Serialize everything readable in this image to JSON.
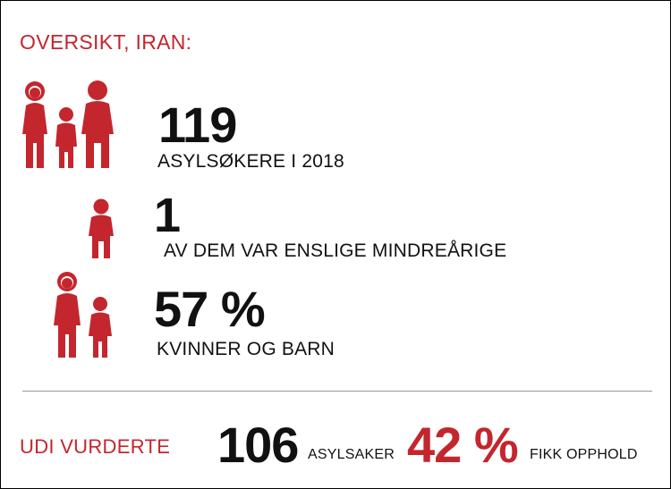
{
  "title": "OVERSIKT, IRAN:",
  "colors": {
    "accent": "#c4262e",
    "text": "#111111"
  },
  "stats": [
    {
      "value": "119",
      "label": "ASYLSØKERE I 2018",
      "icon": "family-icon"
    },
    {
      "value": "1",
      "label": "AV DEM VAR ENSLIGE MINDREÅRIGE",
      "icon": "child-icon"
    },
    {
      "value": "57 %",
      "label": "KVINNER OG BARN",
      "icon": "woman-child-icon"
    }
  ],
  "footer": {
    "prefix": "UDI VURDERTE",
    "cases_value": "106",
    "cases_label": "ASYLSAKER",
    "granted_value": "42 %",
    "granted_label": "FIKK OPPHOLD"
  }
}
